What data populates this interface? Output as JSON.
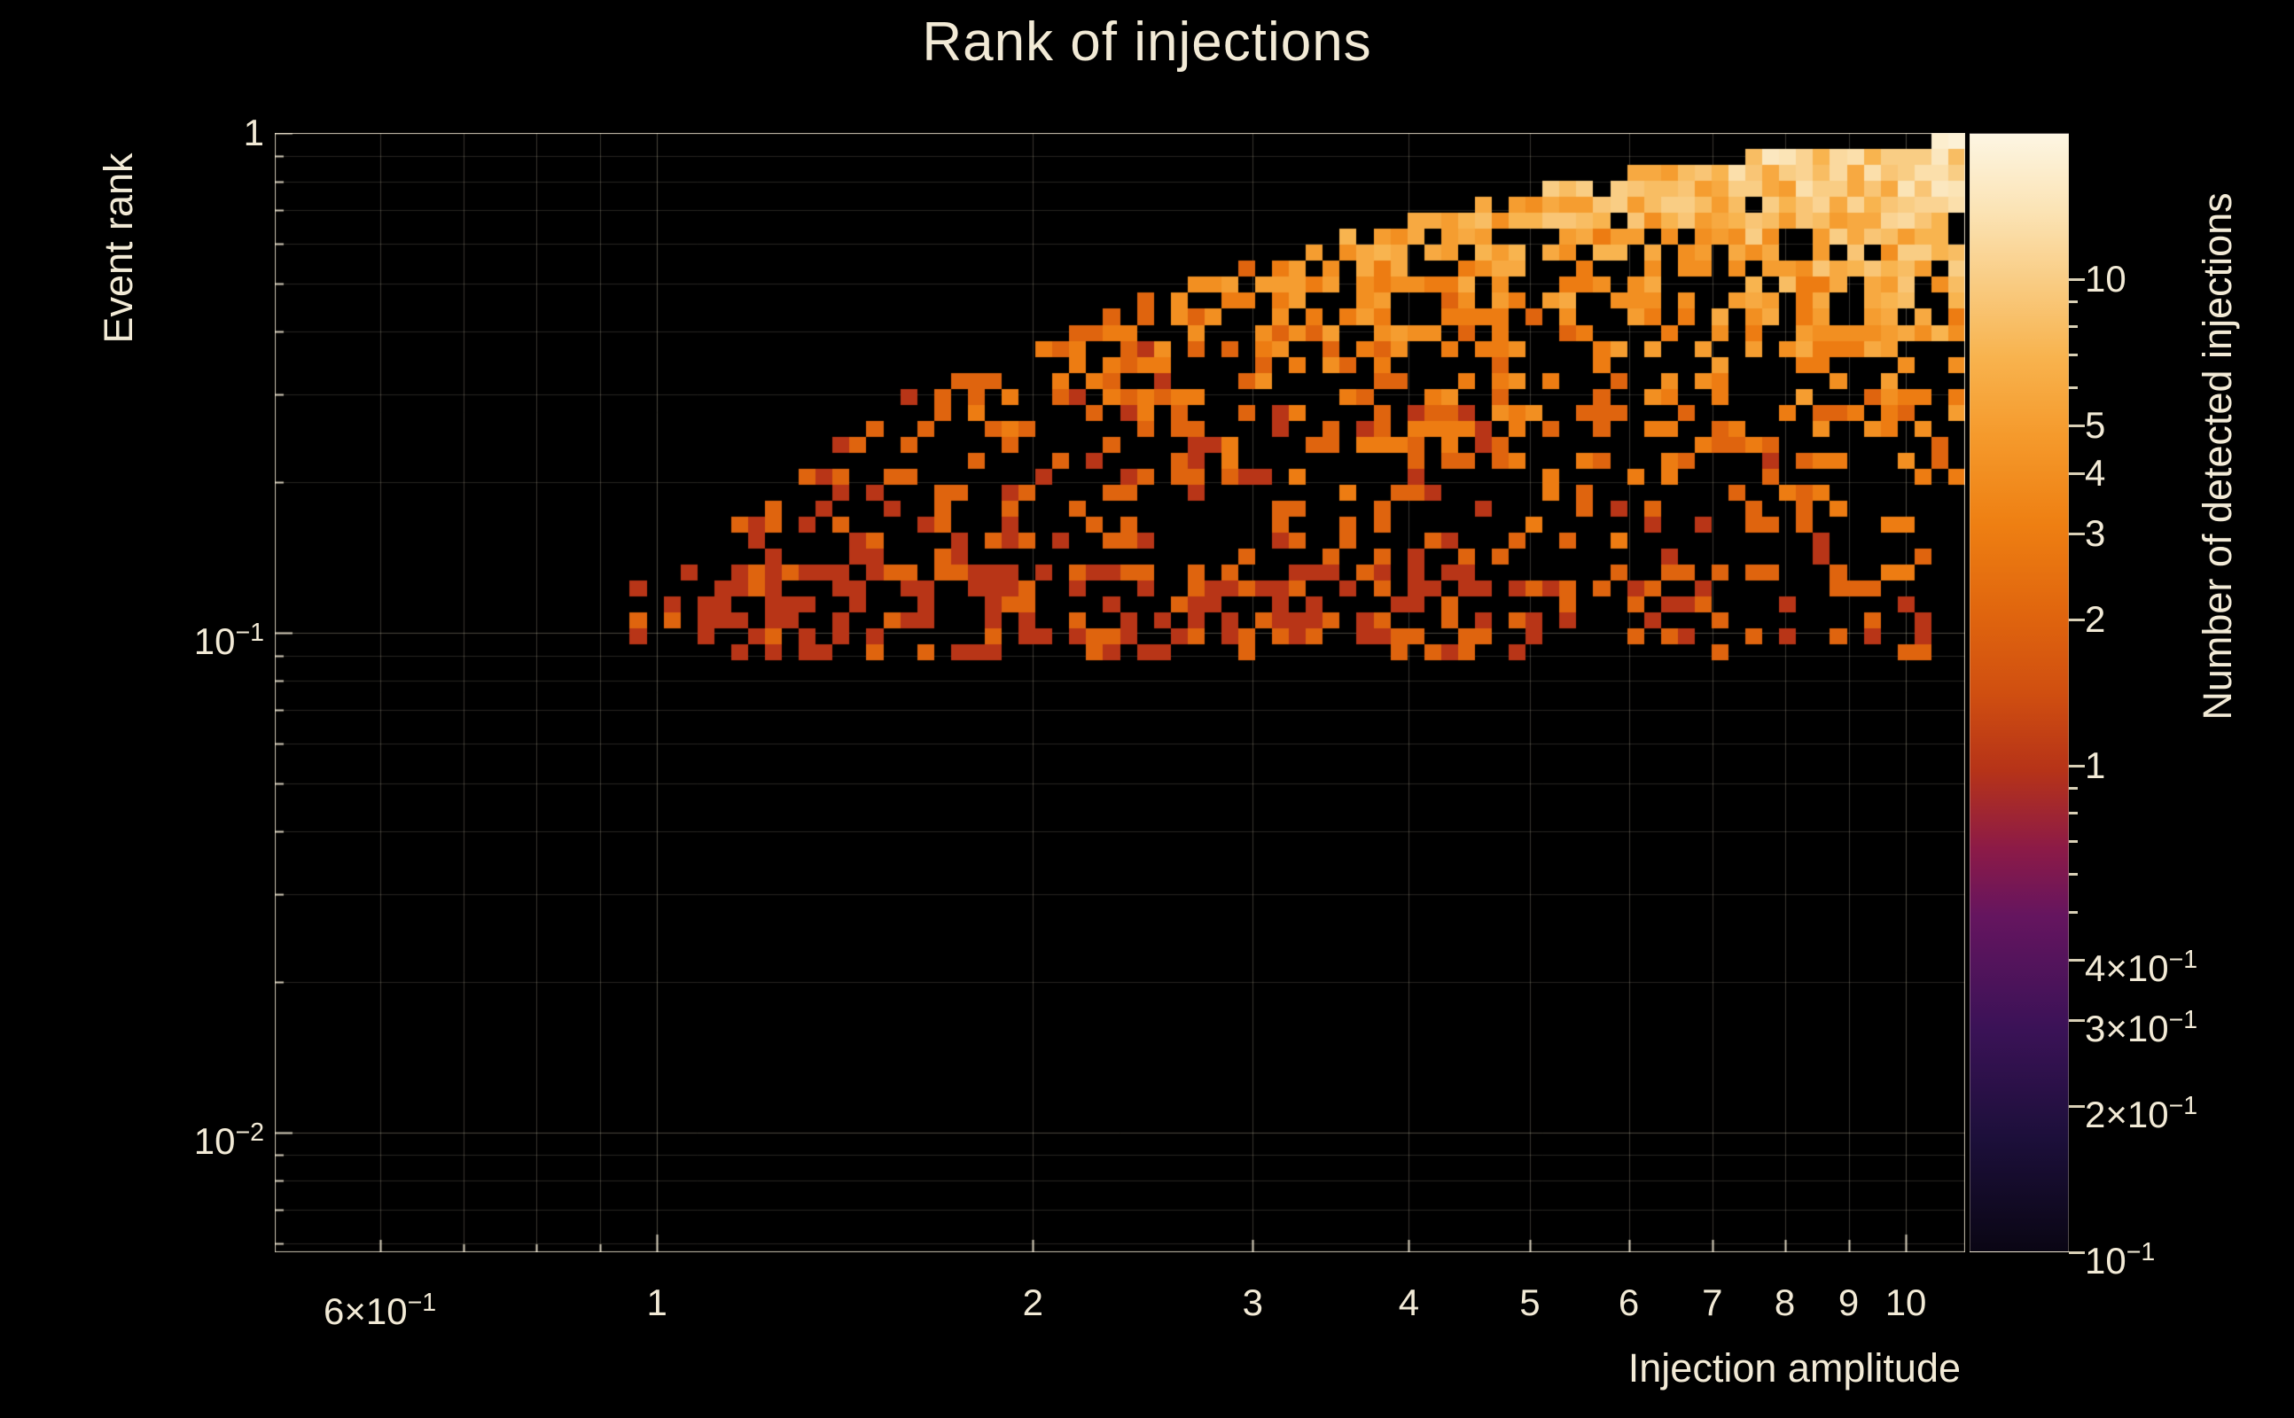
{
  "chart_data": {
    "type": "heatmap",
    "title": "Rank of injections",
    "xlabel": "Injection amplitude",
    "ylabel": "Event rank",
    "zlabel": "Number of detected injections",
    "background_color": "#000000",
    "text_color": "#f2ead6",
    "grid_color": "#d8cfb4",
    "x_axis": {
      "scale": "log",
      "log_min": -0.306,
      "log_max": 1.0475,
      "ticks": [
        {
          "v": 0.6,
          "t": "6×10",
          "e": "−1"
        },
        {
          "v": 1,
          "t": "1"
        },
        {
          "v": 2,
          "t": "2"
        },
        {
          "v": 3,
          "t": "3"
        },
        {
          "v": 4,
          "t": "4"
        },
        {
          "v": 5,
          "t": "5"
        },
        {
          "v": 6,
          "t": "6"
        },
        {
          "v": 7,
          "t": "7"
        },
        {
          "v": 8,
          "t": "8"
        },
        {
          "v": 9,
          "t": "9"
        },
        {
          "v": 10,
          "t": "10"
        }
      ],
      "minor_ticks": [
        0.7,
        0.8,
        0.9
      ]
    },
    "y_axis": {
      "scale": "log",
      "log_min": -2.24,
      "log_max": 0,
      "ticks": [
        {
          "v": 1,
          "t": "1"
        },
        {
          "v": 0.1,
          "t": "10",
          "e": "−1"
        },
        {
          "v": 0.01,
          "t": "10",
          "e": "−2"
        }
      ]
    },
    "z_axis": {
      "scale": "log",
      "log_min": -1,
      "log_max": 1.301,
      "ticks": [
        {
          "v": 10,
          "t": "10"
        },
        {
          "v": 5,
          "t": "5"
        },
        {
          "v": 4,
          "t": "4"
        },
        {
          "v": 3,
          "t": "3"
        },
        {
          "v": 2,
          "t": "2"
        },
        {
          "v": 1,
          "t": "1"
        },
        {
          "v": 0.4,
          "t": "4×10",
          "e": "−1"
        },
        {
          "v": 0.3,
          "t": "3×10",
          "e": "−1"
        },
        {
          "v": 0.2,
          "t": "2×10",
          "e": "−1"
        },
        {
          "v": 0.1,
          "t": "10",
          "e": "−1"
        }
      ]
    },
    "colormap_stops": [
      [
        0.0,
        "#0a0614"
      ],
      [
        0.1,
        "#1c0f3a"
      ],
      [
        0.2,
        "#3b1257"
      ],
      [
        0.3,
        "#65155f"
      ],
      [
        0.36,
        "#8c1a47"
      ],
      [
        0.43,
        "#b63318"
      ],
      [
        0.5,
        "#d04f10"
      ],
      [
        0.57,
        "#e0650e"
      ],
      [
        0.65,
        "#ee7f12"
      ],
      [
        0.73,
        "#f59a2c"
      ],
      [
        0.8,
        "#f8b34e"
      ],
      [
        0.87,
        "#f9cd85"
      ],
      [
        0.93,
        "#fbe3b4"
      ],
      [
        1.0,
        "#fdf6e3"
      ]
    ],
    "bins": {
      "nx": 100,
      "ny": 70
    },
    "distribution": {
      "seed": 20240,
      "x_log_min": -0.18,
      "y_log_min": -1.06,
      "top_envelope": [
        [
          -0.18,
          -1.03
        ],
        [
          -0.06,
          -0.96
        ],
        [
          0.04,
          -0.84
        ],
        [
          0.12,
          -0.66
        ],
        [
          0.2,
          -0.52
        ],
        [
          0.3,
          -0.42
        ],
        [
          0.4,
          -0.325
        ],
        [
          0.5,
          -0.245
        ],
        [
          0.6,
          -0.175
        ],
        [
          0.7,
          -0.115
        ],
        [
          0.8,
          -0.07
        ],
        [
          0.9,
          -0.035
        ],
        [
          1.05,
          -0.01
        ]
      ],
      "fill": {
        "base": 0.18,
        "slope": 0.85,
        "depth_decay": 1.9,
        "edge_boost": 0.25,
        "edge_decay": 6,
        "bottom_boost": 0.33,
        "bottom_center": 0.42,
        "bottom_width": 0.38,
        "bottom_ly": -0.87,
        "left_damp_u": 0,
        "left_damp": 0.45,
        "far_left_damp_u": -0.05,
        "far_left_damp": 0.5,
        "max_p": 0.93
      },
      "count": {
        "base": 1,
        "amp": 13,
        "r_pow": 2.4,
        "depth_decay": 3.0,
        "noise_lo": 0.55,
        "noise_span": 0.95
      }
    }
  }
}
